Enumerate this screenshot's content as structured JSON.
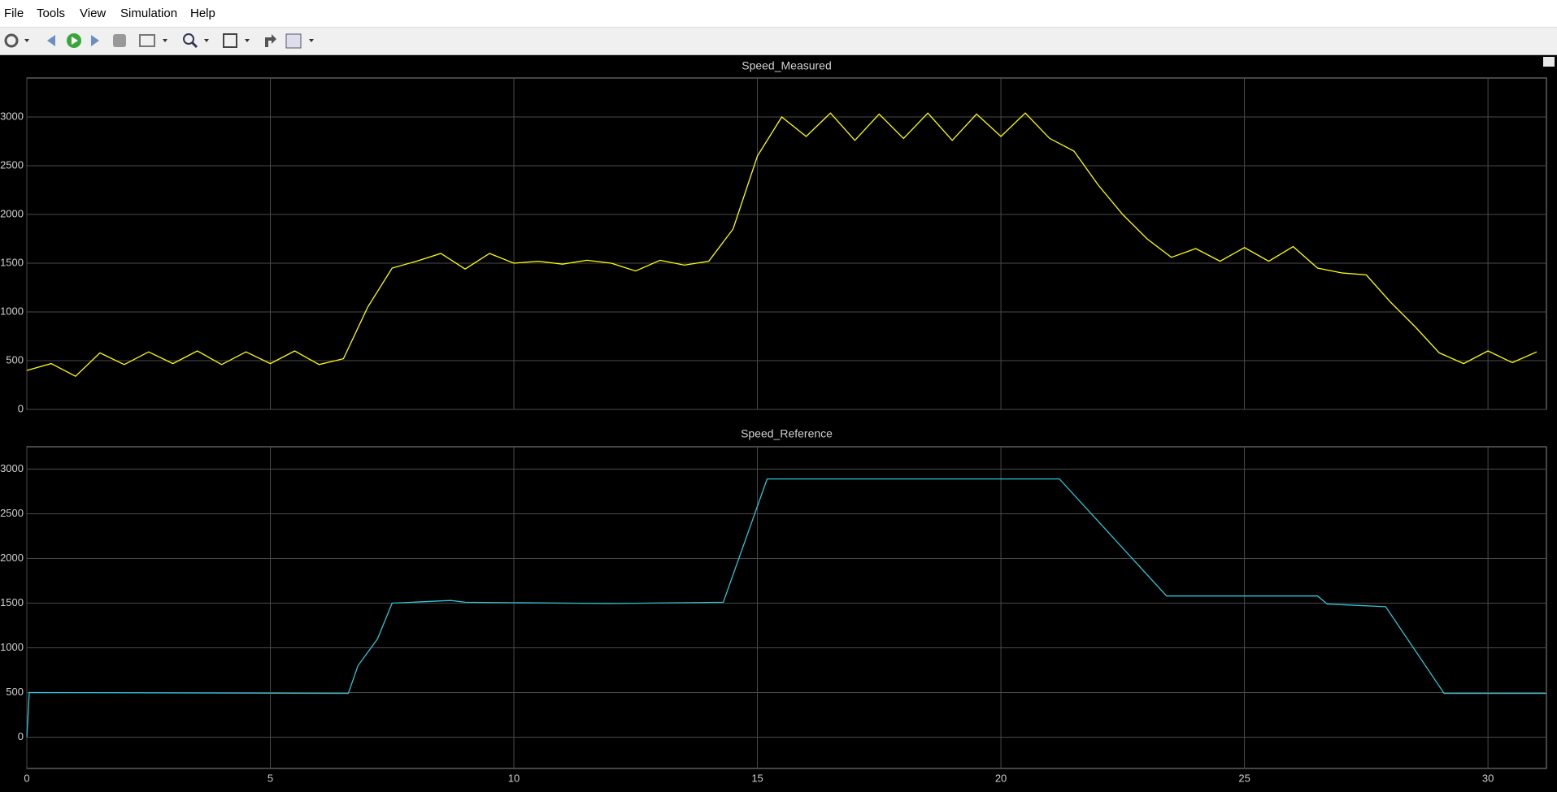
{
  "menu": [
    "File",
    "Tools",
    "View",
    "Simulation",
    "Help"
  ],
  "chart_data": [
    {
      "type": "line",
      "title": "Speed_Measured",
      "color": "#ffff00",
      "grid": true,
      "xtick_labels": false,
      "xlim": [
        0,
        31.2
      ],
      "ylim": [
        0,
        3400
      ],
      "xticks": [
        0,
        5,
        10,
        15,
        20,
        25,
        30
      ],
      "yticks": [
        0,
        500,
        1000,
        1500,
        2000,
        2500,
        3000
      ],
      "x": [
        0,
        0.5,
        1,
        1.5,
        2,
        2.5,
        3,
        3.5,
        4,
        4.5,
        5,
        5.5,
        6,
        6.5,
        7,
        7.5,
        8,
        8.5,
        9,
        9.5,
        10,
        10.5,
        11,
        11.5,
        12,
        12.5,
        13,
        13.5,
        14,
        14.5,
        15,
        15.5,
        16,
        16.5,
        17,
        17.5,
        18,
        18.5,
        19,
        19.5,
        20,
        20.5,
        21,
        21.5,
        22,
        22.5,
        23,
        23.5,
        24,
        24.5,
        25,
        25.5,
        26,
        26.5,
        27,
        27.5,
        28,
        28.5,
        29,
        29.5,
        30,
        30.5,
        31
      ],
      "values": [
        400,
        470,
        340,
        580,
        460,
        590,
        470,
        600,
        460,
        590,
        470,
        600,
        460,
        520,
        1050,
        1450,
        1520,
        1600,
        1440,
        1600,
        1500,
        1520,
        1490,
        1530,
        1500,
        1420,
        1530,
        1480,
        1520,
        1850,
        2600,
        3000,
        2800,
        3040,
        2760,
        3030,
        2780,
        3040,
        2760,
        3030,
        2800,
        3040,
        2780,
        2650,
        2300,
        2000,
        1750,
        1560,
        1650,
        1520,
        1660,
        1520,
        1670,
        1450,
        1400,
        1380,
        1100,
        850,
        580,
        470,
        600,
        480,
        590
      ]
    },
    {
      "type": "line",
      "title": "Speed_Reference",
      "color": "#2fc4d4",
      "grid": true,
      "xtick_labels": true,
      "xlim": [
        0,
        31.2
      ],
      "ylim": [
        -350,
        3250
      ],
      "xticks": [
        0,
        5,
        10,
        15,
        20,
        25,
        30
      ],
      "yticks": [
        0,
        500,
        1000,
        1500,
        2000,
        2500,
        3000
      ],
      "x": [
        0,
        0.05,
        6.6,
        6.8,
        7.2,
        7.5,
        8.7,
        9,
        12,
        14.3,
        15.2,
        21.2,
        23.4,
        26.5,
        26.7,
        27.9,
        29.1,
        31.2
      ],
      "values": [
        0,
        500,
        490,
        800,
        1100,
        1500,
        1530,
        1510,
        1495,
        1510,
        2890,
        2890,
        1580,
        1580,
        1490,
        1460,
        490,
        490
      ]
    }
  ]
}
